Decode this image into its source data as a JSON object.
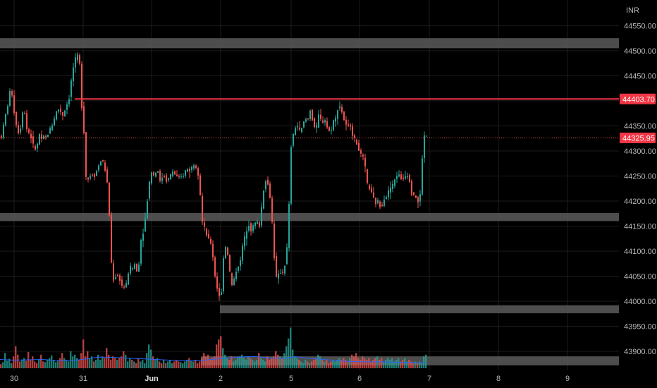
{
  "currency_label": "INR",
  "colors": {
    "background": "#000000",
    "grid": "#1c1c1c",
    "up": "#26a69a",
    "down": "#ef5350",
    "zone": "#5a5a5a",
    "resistance_line": "#f23645",
    "ma_line": "#2962ff",
    "label_bg": "#f23645"
  },
  "chart_data": {
    "type": "candlestick",
    "y_axis": {
      "min": 43862,
      "max": 44590,
      "ticks": [
        44550,
        44500,
        44450,
        44400,
        44350,
        44300,
        44250,
        44200,
        44150,
        44100,
        44050,
        44000,
        43950,
        43900
      ],
      "tick_labels": [
        "44550.00",
        "44500.00",
        "44450.00",
        "44400.00",
        "44350.00",
        "44300.00",
        "44250.00",
        "44200.00",
        "44150.00",
        "44100.00",
        "44050.00",
        "44000.00",
        "43950.00",
        "43900.00"
      ]
    },
    "x_axis": {
      "labels": [
        "30",
        "31",
        "Jun",
        "2",
        "5",
        "6",
        "7",
        "8",
        "9"
      ],
      "bold": [
        "Jun"
      ]
    },
    "resistance_line": {
      "value": 44403.7,
      "label": "44403.70"
    },
    "last_price": {
      "value": 44325.95,
      "label": "44325.95"
    },
    "zones": [
      {
        "from": 44505,
        "to": 44525
      },
      {
        "from": 44160,
        "to": 44176
      },
      {
        "from": 43976,
        "to": 43992
      },
      {
        "from": 43872,
        "to": 43890
      }
    ],
    "price_path": [
      [
        0,
        44325
      ],
      [
        3,
        44330
      ],
      [
        8,
        44370
      ],
      [
        12,
        44395
      ],
      [
        16,
        44430
      ],
      [
        22,
        44360
      ],
      [
        28,
        44330
      ],
      [
        34,
        44395
      ],
      [
        38,
        44345
      ],
      [
        42,
        44335
      ],
      [
        45,
        44325
      ],
      [
        48,
        44310
      ],
      [
        52,
        44300
      ],
      [
        56,
        44335
      ],
      [
        60,
        44320
      ],
      [
        63,
        44330
      ],
      [
        66,
        44325
      ],
      [
        70,
        44340
      ],
      [
        74,
        44350
      ],
      [
        78,
        44368
      ],
      [
        82,
        44385
      ],
      [
        86,
        44380
      ],
      [
        90,
        44370
      ],
      [
        94,
        44390
      ],
      [
        98,
        44400
      ],
      [
        102,
        44445
      ],
      [
        106,
        44480
      ],
      [
        110,
        44490
      ],
      [
        113,
        44488
      ],
      [
        116,
        44395
      ],
      [
        119,
        44355
      ],
      [
        122,
        44250
      ],
      [
        126,
        44243
      ],
      [
        130,
        44255
      ],
      [
        135,
        44250
      ],
      [
        140,
        44270
      ],
      [
        145,
        44285
      ],
      [
        150,
        44260
      ],
      [
        153,
        44230
      ],
      [
        156,
        44160
      ],
      [
        159,
        44060
      ],
      [
        162,
        44040
      ],
      [
        166,
        44055
      ],
      [
        170,
        44045
      ],
      [
        175,
        44025
      ],
      [
        180,
        44035
      ],
      [
        184,
        44070
      ],
      [
        188,
        44065
      ],
      [
        192,
        44075
      ],
      [
        196,
        44050
      ],
      [
        200,
        44120
      ],
      [
        204,
        44140
      ],
      [
        208,
        44180
      ],
      [
        211,
        44225
      ],
      [
        215,
        44260
      ],
      [
        219,
        44250
      ],
      [
        224,
        44265
      ],
      [
        228,
        44235
      ],
      [
        232,
        44255
      ],
      [
        236,
        44240
      ],
      [
        240,
        44245
      ],
      [
        245,
        44260
      ],
      [
        250,
        44250
      ],
      [
        255,
        44245
      ],
      [
        260,
        44250
      ],
      [
        265,
        44265
      ],
      [
        270,
        44260
      ],
      [
        275,
        44275
      ],
      [
        279,
        44268
      ],
      [
        283,
        44245
      ],
      [
        287,
        44160
      ],
      [
        291,
        44145
      ],
      [
        295,
        44125
      ],
      [
        299,
        44120
      ],
      [
        302,
        44095
      ],
      [
        306,
        44045
      ],
      [
        310,
        44015
      ],
      [
        314,
        44005
      ],
      [
        318,
        44100
      ],
      [
        322,
        44115
      ],
      [
        325,
        44075
      ],
      [
        329,
        44030
      ],
      [
        333,
        44045
      ],
      [
        337,
        44070
      ],
      [
        341,
        44075
      ],
      [
        345,
        44115
      ],
      [
        349,
        44135
      ],
      [
        353,
        44155
      ],
      [
        357,
        44140
      ],
      [
        361,
        44155
      ],
      [
        365,
        44158
      ],
      [
        369,
        44150
      ],
      [
        373,
        44210
      ],
      [
        377,
        44245
      ],
      [
        381,
        44230
      ],
      [
        385,
        44195
      ],
      [
        389,
        44095
      ],
      [
        393,
        44040
      ],
      [
        397,
        44060
      ],
      [
        401,
        44055
      ],
      [
        405,
        44075
      ],
      [
        409,
        44125
      ],
      [
        413,
        44305
      ],
      [
        417,
        44335
      ],
      [
        421,
        44355
      ],
      [
        425,
        44340
      ],
      [
        429,
        44345
      ],
      [
        433,
        44365
      ],
      [
        437,
        44360
      ],
      [
        441,
        44385
      ],
      [
        445,
        44350
      ],
      [
        449,
        44345
      ],
      [
        453,
        44375
      ],
      [
        457,
        44355
      ],
      [
        461,
        44365
      ],
      [
        465,
        44345
      ],
      [
        469,
        44335
      ],
      [
        473,
        44360
      ],
      [
        477,
        44365
      ],
      [
        481,
        44395
      ],
      [
        485,
        44380
      ],
      [
        489,
        44360
      ],
      [
        493,
        44345
      ],
      [
        497,
        44355
      ],
      [
        501,
        44330
      ],
      [
        505,
        44320
      ],
      [
        509,
        44305
      ],
      [
        513,
        44290
      ],
      [
        517,
        44285
      ],
      [
        521,
        44235
      ],
      [
        525,
        44225
      ],
      [
        529,
        44210
      ],
      [
        533,
        44195
      ],
      [
        537,
        44200
      ],
      [
        541,
        44185
      ],
      [
        545,
        44205
      ],
      [
        549,
        44210
      ],
      [
        553,
        44225
      ],
      [
        557,
        44230
      ],
      [
        561,
        44245
      ],
      [
        565,
        44255
      ],
      [
        569,
        44245
      ],
      [
        573,
        44245
      ],
      [
        577,
        44255
      ],
      [
        581,
        44245
      ],
      [
        585,
        44210
      ],
      [
        589,
        44215
      ],
      [
        593,
        44195
      ],
      [
        597,
        44215
      ],
      [
        601,
        44330
      ],
      [
        605,
        44330
      ]
    ],
    "volume_series": [
      [
        0,
        12
      ],
      [
        3,
        18
      ],
      [
        6,
        45
      ],
      [
        9,
        22
      ],
      [
        12,
        28
      ],
      [
        15,
        15
      ],
      [
        18,
        35
      ],
      [
        21,
        65
      ],
      [
        24,
        40
      ],
      [
        27,
        20
      ],
      [
        30,
        25
      ],
      [
        33,
        30
      ],
      [
        36,
        22
      ],
      [
        39,
        48
      ],
      [
        42,
        25
      ],
      [
        45,
        35
      ],
      [
        48,
        20
      ],
      [
        51,
        15
      ],
      [
        54,
        25
      ],
      [
        57,
        40
      ],
      [
        60,
        20
      ],
      [
        63,
        18
      ],
      [
        66,
        25
      ],
      [
        69,
        30
      ],
      [
        72,
        38
      ],
      [
        75,
        25
      ],
      [
        78,
        18
      ],
      [
        81,
        22
      ],
      [
        84,
        30
      ],
      [
        87,
        45
      ],
      [
        90,
        30
      ],
      [
        93,
        25
      ],
      [
        96,
        20
      ],
      [
        99,
        50
      ],
      [
        102,
        35
      ],
      [
        105,
        40
      ],
      [
        108,
        30
      ],
      [
        111,
        25
      ],
      [
        114,
        45
      ],
      [
        117,
        85
      ],
      [
        120,
        35
      ],
      [
        123,
        50
      ],
      [
        126,
        30
      ],
      [
        129,
        35
      ],
      [
        132,
        20
      ],
      [
        135,
        25
      ],
      [
        138,
        40
      ],
      [
        141,
        25
      ],
      [
        144,
        35
      ],
      [
        147,
        30
      ],
      [
        150,
        60
      ],
      [
        153,
        40
      ],
      [
        156,
        25
      ],
      [
        159,
        35
      ],
      [
        162,
        30
      ],
      [
        165,
        25
      ],
      [
        168,
        30
      ],
      [
        171,
        35
      ],
      [
        174,
        50
      ],
      [
        177,
        40
      ],
      [
        180,
        20
      ],
      [
        183,
        30
      ],
      [
        186,
        25
      ],
      [
        189,
        20
      ],
      [
        192,
        15
      ],
      [
        195,
        30
      ],
      [
        198,
        20
      ],
      [
        201,
        25
      ],
      [
        204,
        15
      ],
      [
        207,
        45
      ],
      [
        210,
        70
      ],
      [
        213,
        55
      ],
      [
        216,
        35
      ],
      [
        219,
        25
      ],
      [
        222,
        30
      ],
      [
        225,
        20
      ],
      [
        228,
        15
      ],
      [
        231,
        25
      ],
      [
        234,
        15
      ],
      [
        237,
        20
      ],
      [
        240,
        25
      ],
      [
        243,
        15
      ],
      [
        246,
        20
      ],
      [
        249,
        25
      ],
      [
        252,
        20
      ],
      [
        255,
        18
      ],
      [
        258,
        15
      ],
      [
        261,
        20
      ],
      [
        264,
        25
      ],
      [
        267,
        30
      ],
      [
        270,
        22
      ],
      [
        273,
        20
      ],
      [
        276,
        25
      ],
      [
        279,
        15
      ],
      [
        282,
        20
      ],
      [
        285,
        30
      ],
      [
        288,
        45
      ],
      [
        291,
        35
      ],
      [
        294,
        40
      ],
      [
        297,
        25
      ],
      [
        300,
        30
      ],
      [
        303,
        35
      ],
      [
        306,
        70
      ],
      [
        309,
        85
      ],
      [
        312,
        95
      ],
      [
        315,
        60
      ],
      [
        318,
        40
      ],
      [
        321,
        30
      ],
      [
        324,
        25
      ],
      [
        327,
        35
      ],
      [
        330,
        20
      ],
      [
        333,
        25
      ],
      [
        336,
        30
      ],
      [
        339,
        35
      ],
      [
        342,
        40
      ],
      [
        345,
        30
      ],
      [
        348,
        25
      ],
      [
        351,
        35
      ],
      [
        354,
        30
      ],
      [
        357,
        25
      ],
      [
        360,
        20
      ],
      [
        363,
        25
      ],
      [
        366,
        45
      ],
      [
        369,
        30
      ],
      [
        372,
        25
      ],
      [
        375,
        20
      ],
      [
        378,
        35
      ],
      [
        381,
        25
      ],
      [
        384,
        30
      ],
      [
        387,
        35
      ],
      [
        390,
        50
      ],
      [
        393,
        40
      ],
      [
        396,
        35
      ],
      [
        399,
        30
      ],
      [
        402,
        45
      ],
      [
        405,
        65
      ],
      [
        408,
        88
      ],
      [
        411,
        120
      ],
      [
        414,
        55
      ],
      [
        417,
        35
      ],
      [
        420,
        30
      ],
      [
        423,
        25
      ],
      [
        426,
        20
      ],
      [
        429,
        15
      ],
      [
        432,
        25
      ],
      [
        435,
        20
      ],
      [
        438,
        15
      ],
      [
        441,
        20
      ],
      [
        444,
        25
      ],
      [
        447,
        30
      ],
      [
        450,
        40
      ],
      [
        453,
        35
      ],
      [
        456,
        25
      ],
      [
        459,
        20
      ],
      [
        462,
        25
      ],
      [
        465,
        15
      ],
      [
        468,
        20
      ],
      [
        471,
        25
      ],
      [
        474,
        20
      ],
      [
        477,
        25
      ],
      [
        480,
        30
      ],
      [
        483,
        25
      ],
      [
        486,
        30
      ],
      [
        489,
        25
      ],
      [
        492,
        20
      ],
      [
        495,
        30
      ],
      [
        498,
        40
      ],
      [
        501,
        35
      ],
      [
        504,
        45
      ],
      [
        507,
        30
      ],
      [
        510,
        25
      ],
      [
        513,
        35
      ],
      [
        516,
        30
      ],
      [
        519,
        25
      ],
      [
        522,
        30
      ],
      [
        525,
        20
      ],
      [
        528,
        25
      ],
      [
        531,
        30
      ],
      [
        534,
        35
      ],
      [
        537,
        25
      ],
      [
        540,
        30
      ],
      [
        543,
        20
      ],
      [
        546,
        25
      ],
      [
        549,
        30
      ],
      [
        552,
        25
      ],
      [
        555,
        30
      ],
      [
        558,
        20
      ],
      [
        561,
        25
      ],
      [
        564,
        30
      ],
      [
        567,
        20
      ],
      [
        570,
        25
      ],
      [
        573,
        30
      ],
      [
        576,
        20
      ],
      [
        579,
        25
      ],
      [
        582,
        20
      ],
      [
        585,
        15
      ],
      [
        588,
        20
      ],
      [
        591,
        15
      ],
      [
        594,
        20
      ],
      [
        597,
        15
      ],
      [
        600,
        35
      ],
      [
        603,
        40
      ]
    ],
    "volume_ma": [
      [
        0,
        26
      ],
      [
        20,
        24
      ],
      [
        40,
        25
      ],
      [
        60,
        26
      ],
      [
        80,
        23
      ],
      [
        100,
        22
      ],
      [
        120,
        27
      ],
      [
        140,
        33
      ],
      [
        160,
        32
      ],
      [
        180,
        30
      ],
      [
        200,
        28
      ],
      [
        220,
        26
      ],
      [
        240,
        24
      ],
      [
        260,
        22
      ],
      [
        280,
        22
      ],
      [
        300,
        26
      ],
      [
        320,
        30
      ],
      [
        340,
        33
      ],
      [
        360,
        35
      ],
      [
        380,
        31
      ],
      [
        400,
        29
      ],
      [
        420,
        34
      ],
      [
        440,
        29
      ],
      [
        460,
        26
      ],
      [
        480,
        22
      ],
      [
        500,
        20
      ],
      [
        520,
        19
      ],
      [
        540,
        19
      ],
      [
        560,
        18
      ],
      [
        580,
        17
      ],
      [
        600,
        16
      ],
      [
        605,
        16
      ]
    ]
  }
}
